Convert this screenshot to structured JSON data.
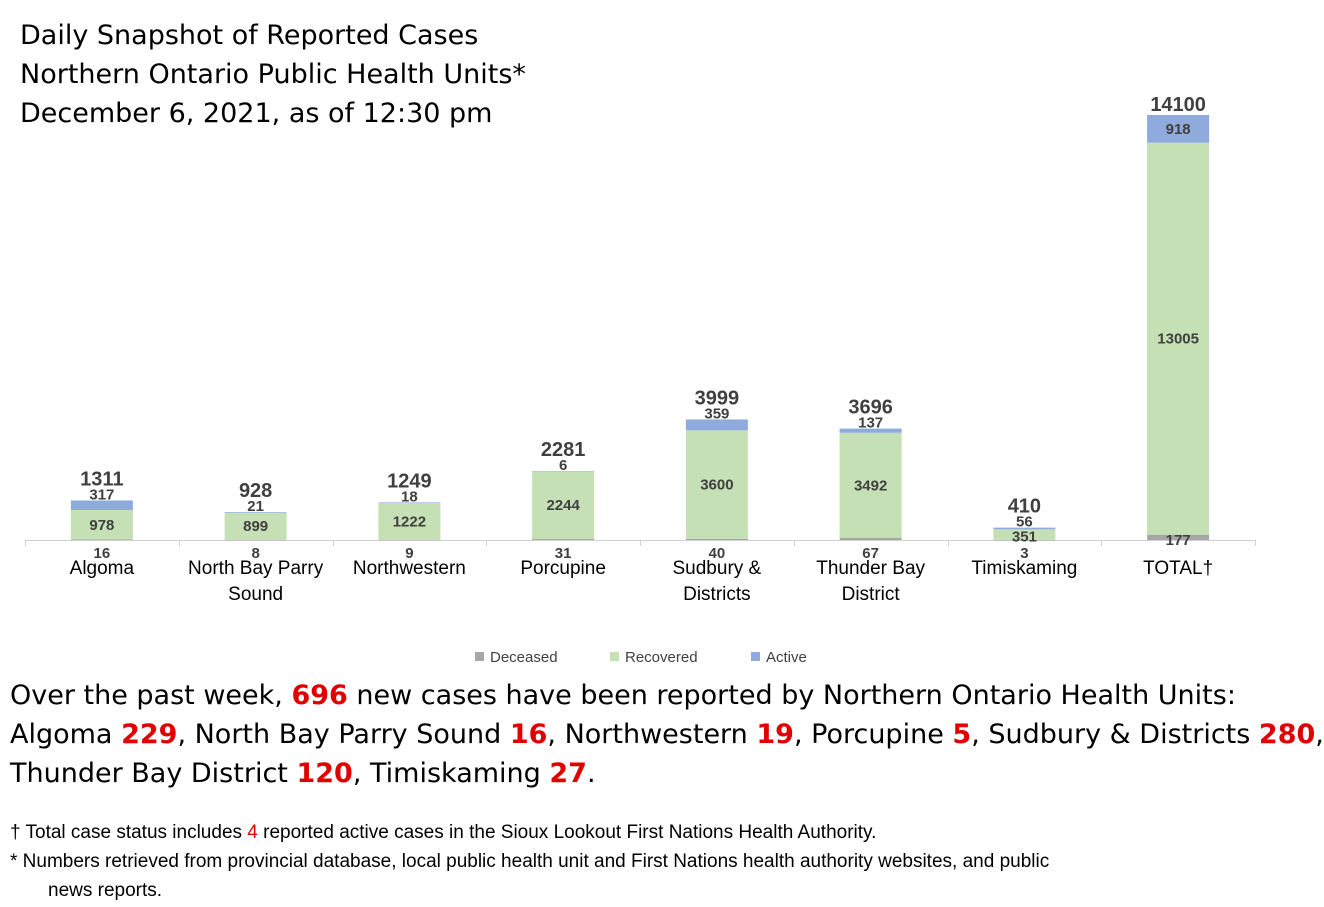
{
  "title_lines": [
    "Daily Snapshot of Reported Cases",
    "Northern Ontario Public Health Units*",
    "December 6, 2021, as of 12:30 pm"
  ],
  "chart_data": {
    "type": "bar",
    "stacked": true,
    "categories": [
      [
        "Algoma"
      ],
      [
        "North Bay Parry",
        "Sound"
      ],
      [
        "Northwestern"
      ],
      [
        "Porcupine"
      ],
      [
        "Sudbury &",
        "Districts"
      ],
      [
        "Thunder Bay",
        "District"
      ],
      [
        "Timiskaming"
      ],
      [
        "TOTAL†"
      ]
    ],
    "series": [
      {
        "name": "Deceased",
        "color": "#a6a6a6",
        "values": [
          16,
          8,
          9,
          31,
          40,
          67,
          3,
          177
        ]
      },
      {
        "name": "Recovered",
        "color": "#c5e0b4",
        "values": [
          978,
          899,
          1222,
          2244,
          3600,
          3492,
          351,
          13005
        ]
      },
      {
        "name": "Active",
        "color": "#8faadc",
        "values": [
          317,
          21,
          18,
          6,
          359,
          137,
          56,
          918
        ]
      }
    ],
    "totals": [
      1311,
      928,
      1249,
      2281,
      3999,
      3696,
      410,
      14100
    ],
    "ylim": [
      0,
      14100
    ],
    "legend_position": "bottom",
    "grid": false
  },
  "summary": {
    "line1": [
      "Over the past week, ",
      "696",
      " new cases have been reported by Northern Ontario Health Units:"
    ],
    "line2": [
      "Algoma ",
      "229",
      ", North Bay Parry Sound ",
      "16",
      ", Northwestern ",
      "19",
      ", Porcupine ",
      "5",
      ", Sudbury & Districts ",
      "280",
      ","
    ],
    "line3": [
      "Thunder Bay District ",
      "120",
      ", Timiskaming ",
      "27",
      "."
    ]
  },
  "footnotes": {
    "dagger": [
      "† Total case status includes ",
      "4",
      " reported active cases in the Sioux Lookout First Nations Health Authority."
    ],
    "star_line1": "* Numbers retrieved from provincial database, local public health unit and First Nations health authority websites, and public",
    "star_line2": "news reports."
  }
}
